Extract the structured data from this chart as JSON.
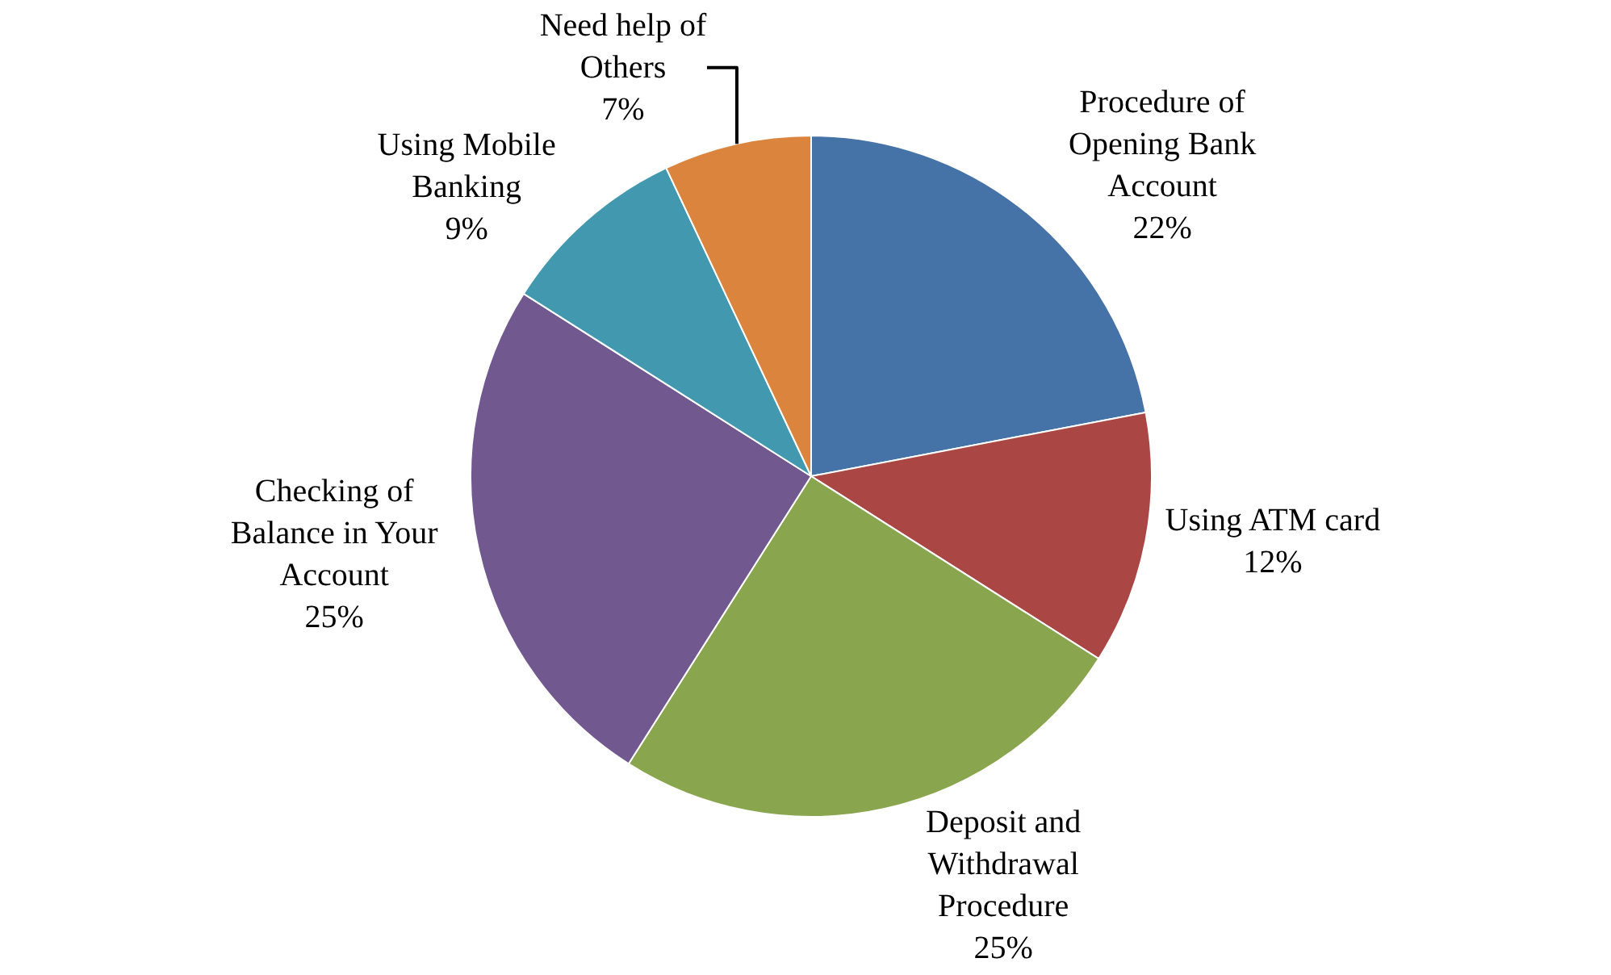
{
  "chart_data": {
    "type": "pie",
    "categories": [
      "Procedure of Opening Bank Account",
      "Using ATM card",
      "Deposit and Withdrawal Procedure",
      "Checking of Balance in Your Account",
      "Using Mobile Banking",
      "Need help of Others"
    ],
    "values": [
      22,
      12,
      25,
      25,
      9,
      7
    ],
    "value_labels": [
      "22%",
      "12%",
      "25%",
      "25%",
      "9%",
      "7%"
    ],
    "colors": [
      "#4572a7",
      "#aa4643",
      "#89a54e",
      "#71588f",
      "#4198af",
      "#db843d"
    ],
    "legend": false
  }
}
